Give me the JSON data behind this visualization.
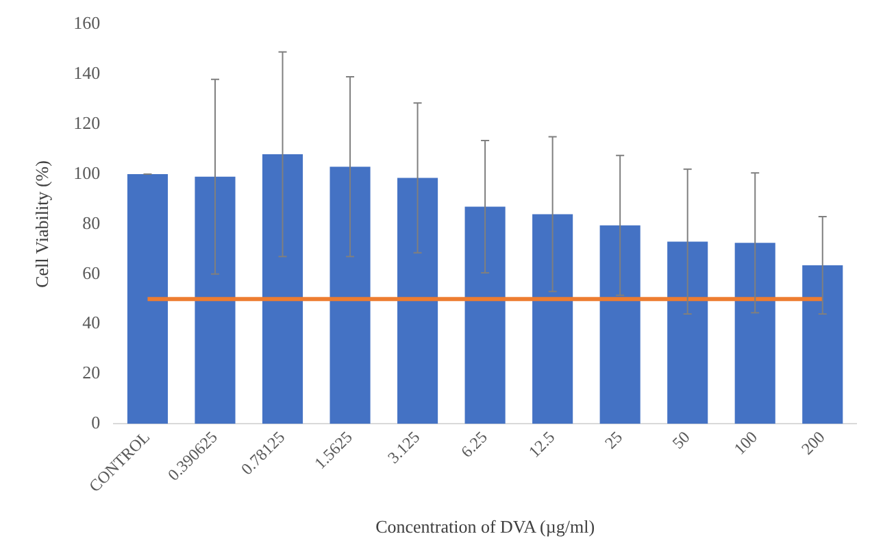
{
  "chart_data": {
    "type": "bar",
    "xlabel": "Concentration of DVA (µg/ml)",
    "ylabel": "Cell Viability (%)",
    "categories": [
      "CONTROL",
      "0.390625",
      "0.78125",
      "1.5625",
      "3.125",
      "6.25",
      "12.5",
      "25",
      "50",
      "100",
      "200"
    ],
    "values": [
      100,
      99,
      108,
      103,
      98.5,
      87,
      84,
      79.5,
      73,
      72.5,
      63.5
    ],
    "errors": [
      0,
      39,
      41,
      36,
      30,
      26.5,
      31,
      28,
      29,
      28,
      19.5
    ],
    "color": "#4472c4",
    "ylim": [
      0,
      160
    ],
    "yticks": [
      0,
      20,
      40,
      60,
      80,
      100,
      120,
      140,
      160
    ],
    "grid": false,
    "legend": false,
    "ref_lines": [
      {
        "axis": "y",
        "value": 50,
        "color": "#ed7d31",
        "line_style": "solid"
      }
    ]
  }
}
